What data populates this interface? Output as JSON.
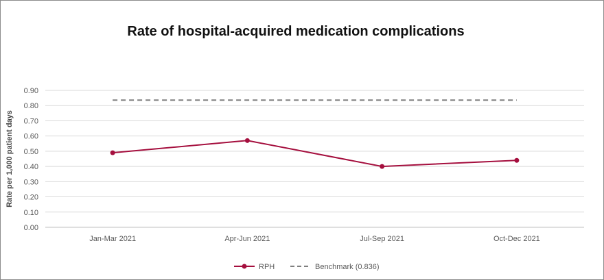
{
  "chart_data": {
    "type": "line",
    "title": "Rate of hospital-acquired medication complications",
    "xlabel": "",
    "ylabel": "Rate per 1,000 patient days",
    "categories": [
      "Jan-Mar 2021",
      "Apr-Jun 2021",
      "Jul-Sep 2021",
      "Oct-Dec 2021"
    ],
    "ylim": [
      0,
      0.9
    ],
    "yticks": [
      "0.00",
      "0.10",
      "0.20",
      "0.30",
      "0.40",
      "0.50",
      "0.60",
      "0.70",
      "0.80",
      "0.90"
    ],
    "grid": true,
    "legend_position": "bottom",
    "series": [
      {
        "name": "RPH",
        "values": [
          0.49,
          0.57,
          0.4,
          0.44
        ],
        "color": "#A50F3E",
        "style": "solid-markers"
      },
      {
        "name": "Benchmark (0.836)",
        "values": [
          0.836,
          0.836,
          0.836,
          0.836
        ],
        "color": "#7F7F7F",
        "style": "dashed"
      }
    ]
  }
}
